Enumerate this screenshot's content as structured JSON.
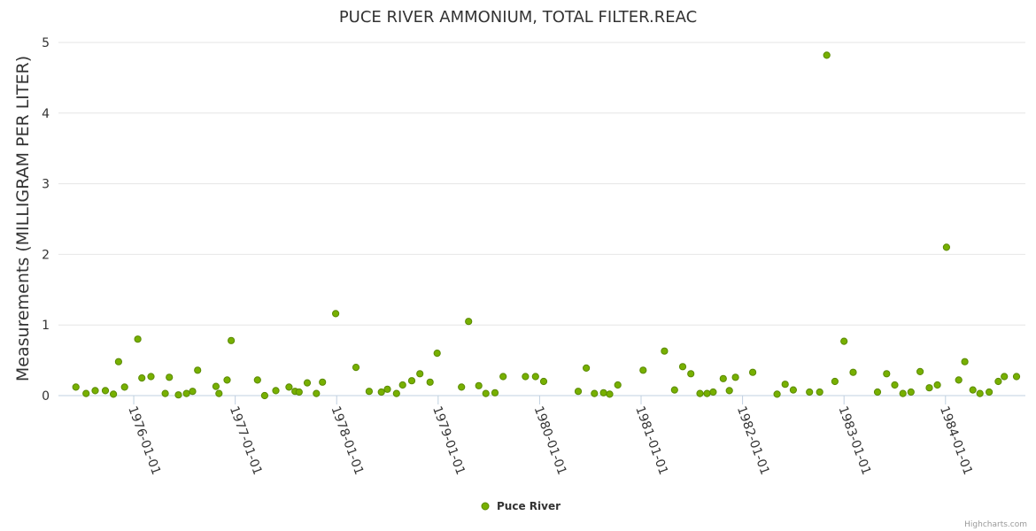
{
  "chart_data": {
    "type": "scatter",
    "title": "PUCE RIVER AMMONIUM, TOTAL FILTER.REAC",
    "xlabel": "",
    "ylabel": "Measurements (MILLIGRAM PER LITER)",
    "ylim": [
      0,
      5
    ],
    "yticks": [
      "0",
      "1",
      "2",
      "3",
      "4",
      "5"
    ],
    "xticks": [
      "1976-01-01",
      "1977-01-01",
      "1978-01-01",
      "1979-01-01",
      "1980-01-01",
      "1981-01-01",
      "1982-01-01",
      "1983-01-01",
      "1984-01-01"
    ],
    "xlim": [
      1975.38,
      1984.7
    ],
    "grid": true,
    "legend_position": "bottom-center",
    "color": "#77b000",
    "series": [
      {
        "name": "Puce River",
        "x": [
          1975.43,
          1975.53,
          1975.62,
          1975.72,
          1975.8,
          1975.85,
          1975.91,
          1976.04,
          1976.08,
          1976.17,
          1976.31,
          1976.35,
          1976.44,
          1976.52,
          1976.58,
          1976.63,
          1976.81,
          1976.84,
          1976.92,
          1976.96,
          1977.22,
          1977.29,
          1977.4,
          1977.53,
          1977.59,
          1977.63,
          1977.71,
          1977.8,
          1977.86,
          1977.99,
          1978.19,
          1978.32,
          1978.44,
          1978.5,
          1978.59,
          1978.65,
          1978.74,
          1978.82,
          1978.92,
          1978.99,
          1979.23,
          1979.3,
          1979.4,
          1979.47,
          1979.56,
          1979.64,
          1979.86,
          1979.96,
          1980.04,
          1980.38,
          1980.46,
          1980.54,
          1980.63,
          1980.69,
          1980.77,
          1981.02,
          1981.23,
          1981.33,
          1981.41,
          1981.49,
          1981.58,
          1981.65,
          1981.71,
          1981.81,
          1981.87,
          1981.93,
          1982.1,
          1982.34,
          1982.42,
          1982.5,
          1982.66,
          1982.76,
          1982.83,
          1982.91,
          1983.0,
          1983.09,
          1983.33,
          1983.42,
          1983.5,
          1983.58,
          1983.66,
          1983.75,
          1983.84,
          1983.92,
          1984.01,
          1984.13,
          1984.19,
          1984.27,
          1984.34,
          1984.43,
          1984.52,
          1984.58,
          1984.7
        ],
        "y": [
          0.12,
          0.03,
          0.07,
          0.07,
          0.02,
          0.48,
          0.12,
          0.8,
          0.25,
          0.27,
          0.03,
          0.26,
          0.01,
          0.03,
          0.06,
          0.36,
          0.13,
          0.03,
          0.22,
          0.78,
          0.22,
          0.0,
          0.07,
          0.12,
          0.06,
          0.05,
          0.18,
          0.03,
          0.19,
          1.16,
          0.4,
          0.06,
          0.05,
          0.09,
          0.03,
          0.15,
          0.21,
          0.31,
          0.19,
          0.6,
          0.12,
          1.05,
          0.14,
          0.03,
          0.04,
          0.27,
          0.27,
          0.27,
          0.2,
          0.06,
          0.39,
          0.03,
          0.04,
          0.02,
          0.15,
          0.36,
          0.63,
          0.08,
          0.41,
          0.31,
          0.03,
          0.03,
          0.05,
          0.24,
          0.07,
          0.26,
          0.33,
          0.02,
          0.16,
          0.08,
          0.05,
          0.05,
          4.82,
          0.2,
          0.77,
          0.33,
          0.05,
          0.31,
          0.15,
          0.03,
          0.05,
          0.34,
          0.11,
          0.15,
          2.1,
          0.22,
          0.48,
          0.08,
          0.03,
          0.05,
          0.2,
          0.27,
          0.27
        ]
      }
    ]
  },
  "credits": "Highcharts.com"
}
